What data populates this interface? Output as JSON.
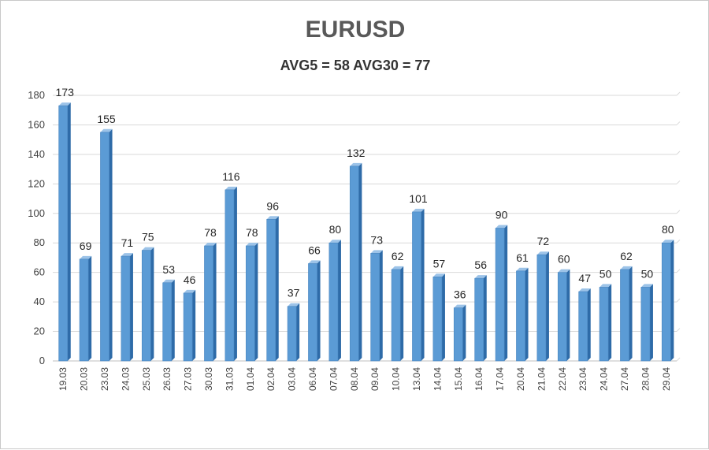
{
  "chart_data": {
    "type": "bar",
    "title": "EURUSD",
    "subtitle": "AVG5 = 58 AVG30 = 77",
    "categories": [
      "19.03",
      "20.03",
      "23.03",
      "24.03",
      "25.03",
      "26.03",
      "27.03",
      "30.03",
      "31.03",
      "01.04",
      "02.04",
      "03.04",
      "06.04",
      "07.04",
      "08.04",
      "09.04",
      "10.04",
      "13.04",
      "14.04",
      "15.04",
      "16.04",
      "17.04",
      "20.04",
      "21.04",
      "22.04",
      "23.04",
      "24.04",
      "27.04",
      "28.04",
      "29.04"
    ],
    "values": [
      173,
      69,
      155,
      71,
      75,
      53,
      46,
      78,
      116,
      78,
      96,
      37,
      66,
      80,
      132,
      73,
      62,
      101,
      57,
      36,
      56,
      90,
      61,
      72,
      60,
      47,
      50,
      62,
      50,
      80
    ],
    "ylim": [
      0,
      180
    ],
    "yticks": [
      0,
      20,
      40,
      60,
      80,
      100,
      120,
      140,
      160,
      180
    ],
    "grid": true,
    "legend": "none",
    "bar_color": "#5b9bd5",
    "bar_side_color": "#2e6ba8"
  }
}
